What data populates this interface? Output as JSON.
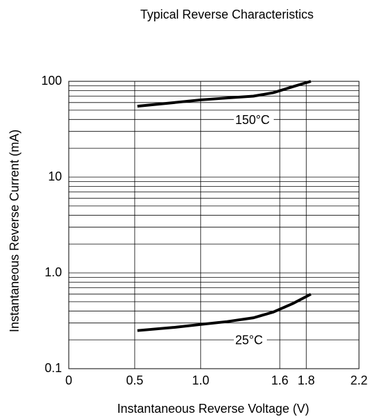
{
  "chart_data": {
    "type": "line",
    "title": "Typical Reverse Characteristics",
    "x_label": "Instantaneous Reverse Voltage (V)",
    "y_label": "Instantaneous Reverse Current (mA)",
    "xlim": [
      0,
      2.2
    ],
    "xticks": [
      0,
      0.5,
      {
        "value": 1.0,
        "label": "1.0"
      },
      1.6,
      1.8,
      2.2
    ],
    "ylim": [
      0.1,
      100
    ],
    "yticks": [
      {
        "value": 0.1,
        "label": "0.1"
      },
      {
        "value": 1,
        "label": "1.0"
      },
      10,
      100
    ],
    "log_y": true,
    "grid": true,
    "x": [
      0.52,
      0.8,
      1.0,
      1.2,
      1.4,
      1.55,
      1.7,
      1.835
    ],
    "series": [
      {
        "name": "150°C",
        "color": "#000000",
        "values": [
          55,
          60,
          64,
          67,
          70,
          76,
          88,
          100
        ]
      },
      {
        "name": "25°C",
        "color": "#000000",
        "values": [
          0.25,
          0.27,
          0.29,
          0.31,
          0.34,
          0.39,
          0.48,
          0.6
        ]
      }
    ]
  }
}
